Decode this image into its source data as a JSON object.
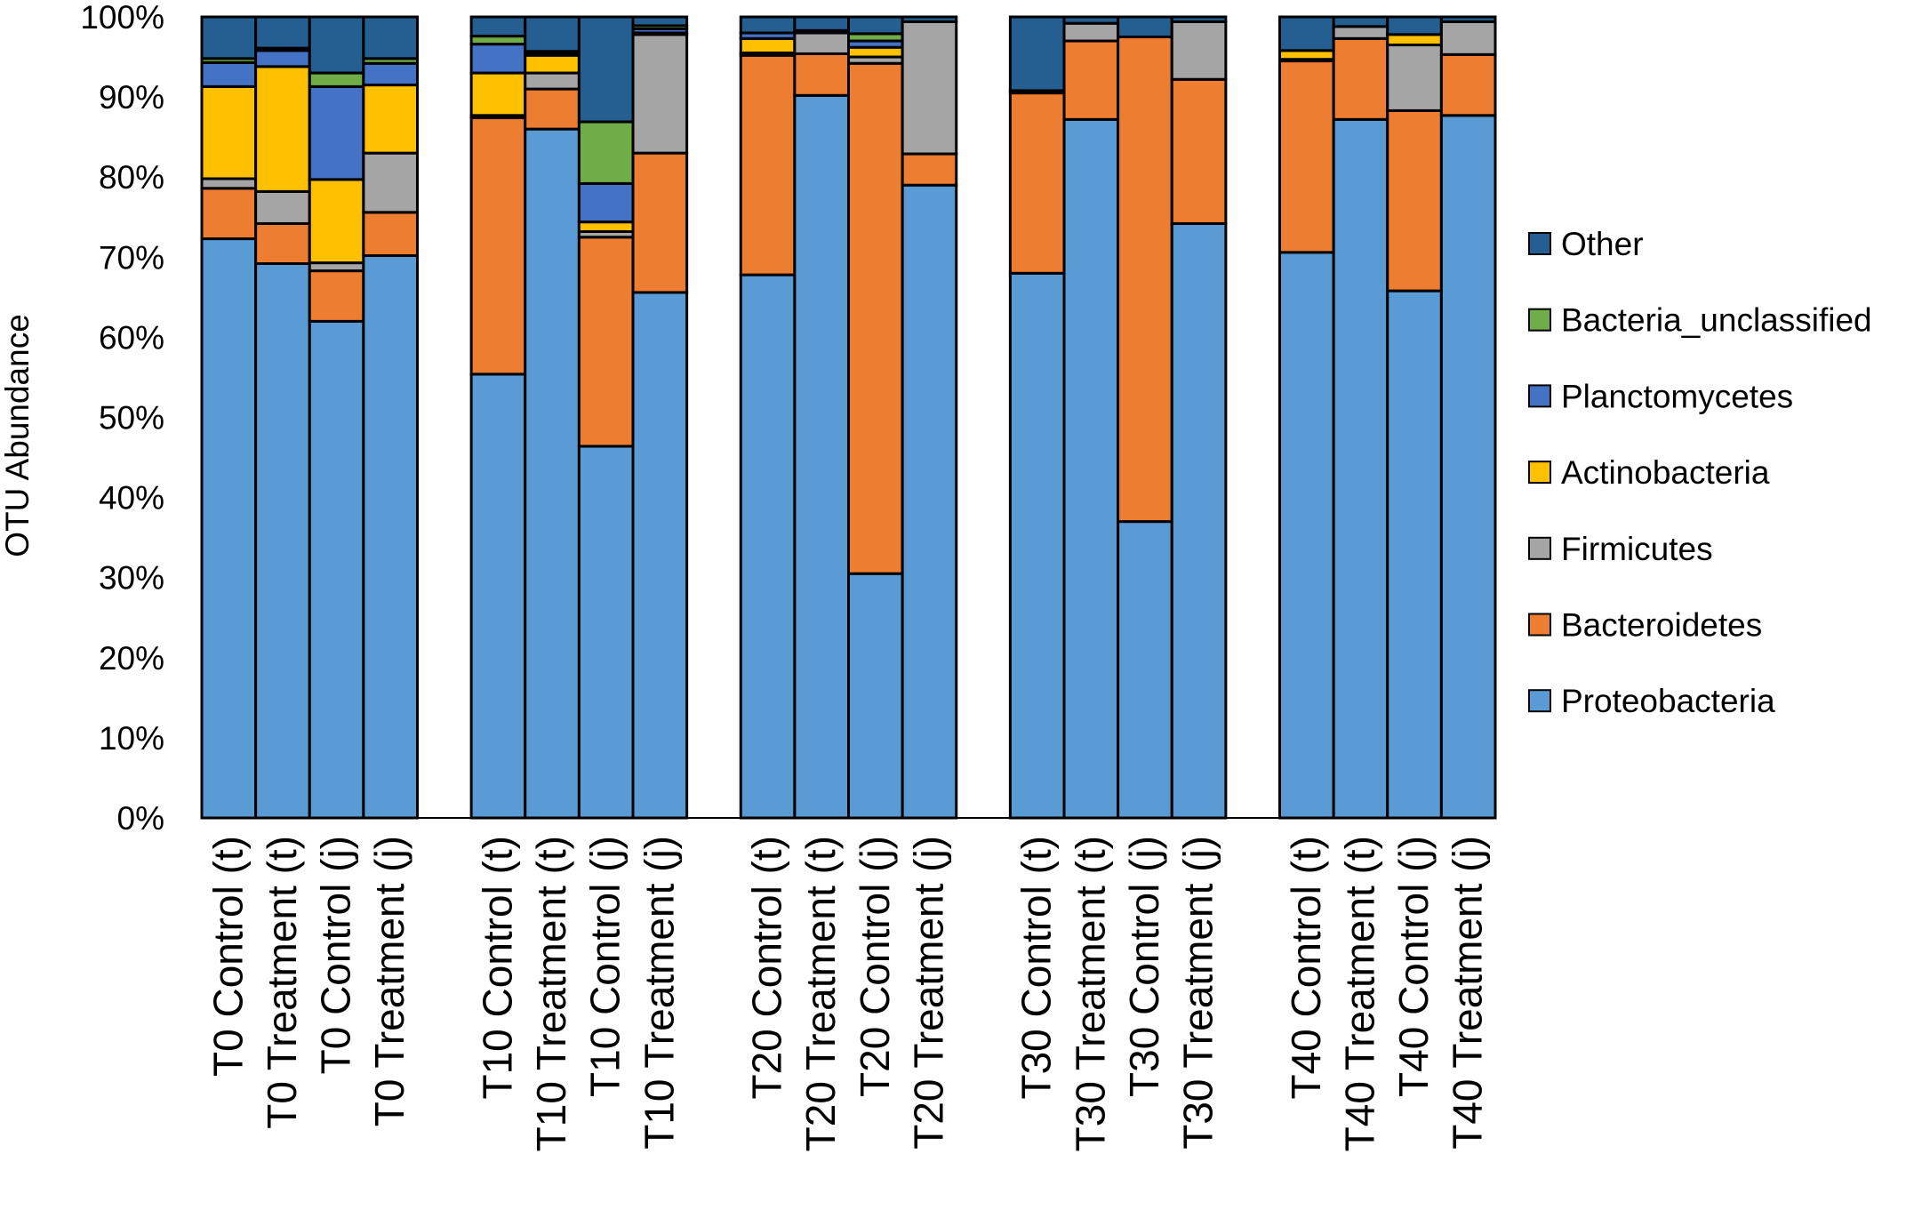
{
  "chart_data": {
    "type": "bar",
    "stacked": true,
    "title": "",
    "xlabel": "",
    "ylabel": "OTU Abundance",
    "ylim": [
      0,
      100
    ],
    "yticks": [
      "0%",
      "10%",
      "20%",
      "30%",
      "40%",
      "50%",
      "60%",
      "70%",
      "80%",
      "90%",
      "100%"
    ],
    "legend_position": "right",
    "groups": [
      [
        "T0 Control (t)",
        "T0 Treatment (t)",
        "T0 Control (j)",
        "T0 Treatment (j)"
      ],
      [
        "T10 Control (t)",
        "T10 Treatment (t)",
        "T10 Control (j)",
        "T10 Treatment (j)"
      ],
      [
        "T20 Control (t)",
        "T20 Treatment (t)",
        "T20 Control (j)",
        "T20 Treatment (j)"
      ],
      [
        "T30 Control (t)",
        "T30 Treatment (t)",
        "T30 Control (j)",
        "T30 Treatment (j)"
      ],
      [
        "T40 Control (t)",
        "T40 Treatment (t)",
        "T40 Control (j)",
        "T40 Treatment (j)"
      ]
    ],
    "series": [
      {
        "name": "Proteobacteria",
        "color": "#5B9BD5",
        "values": [
          72.3,
          69.2,
          62.0,
          70.2,
          55.4,
          86.0,
          46.4,
          65.6,
          67.8,
          90.2,
          30.5,
          79.0,
          68.0,
          87.2,
          37.0,
          74.2,
          70.6,
          87.2,
          65.8,
          87.7
        ]
      },
      {
        "name": "Bacteroidetes",
        "color": "#ED7D31",
        "values": [
          6.3,
          5.0,
          6.3,
          5.4,
          32.0,
          5.0,
          26.1,
          17.4,
          27.4,
          5.2,
          63.7,
          3.9,
          22.5,
          9.8,
          60.5,
          18.0,
          23.9,
          10.1,
          22.5,
          7.6
        ]
      },
      {
        "name": "Firmicutes",
        "color": "#A5A5A5",
        "values": [
          1.2,
          4.0,
          1.0,
          7.4,
          0.3,
          2.0,
          0.7,
          14.8,
          0.3,
          2.6,
          0.8,
          16.5,
          0.0,
          2.2,
          0.0,
          7.2,
          0.2,
          1.5,
          8.2,
          4.1
        ]
      },
      {
        "name": "Actinobacteria",
        "color": "#FFC000",
        "values": [
          11.5,
          15.6,
          10.4,
          8.5,
          5.3,
          2.2,
          1.2,
          0.2,
          1.8,
          0.3,
          1.2,
          0.0,
          0.3,
          0.0,
          0.0,
          0.0,
          1.1,
          0.0,
          1.3,
          0.0
        ]
      },
      {
        "name": "Planctomycetes",
        "color": "#4472C4",
        "values": [
          3.0,
          2.0,
          11.6,
          2.7,
          3.6,
          0.3,
          4.8,
          0.5,
          0.7,
          0.0,
          0.8,
          0.0,
          0.0,
          0.0,
          0.0,
          0.0,
          0.0,
          0.0,
          0.0,
          0.0
        ]
      },
      {
        "name": "Bacteria_unclassified",
        "color": "#70AD47",
        "values": [
          0.5,
          0.3,
          1.7,
          0.6,
          1.0,
          0.2,
          7.7,
          0.4,
          0.0,
          0.0,
          0.9,
          0.0,
          0.0,
          0.0,
          0.0,
          0.0,
          0.0,
          0.0,
          0.0,
          0.0
        ]
      },
      {
        "name": "Other",
        "color": "#255E91",
        "values": [
          5.2,
          3.9,
          7.0,
          5.2,
          2.4,
          4.3,
          13.1,
          1.1,
          2.0,
          1.7,
          2.1,
          0.6,
          9.2,
          0.8,
          2.5,
          0.6,
          4.2,
          1.2,
          2.2,
          0.6
        ]
      }
    ]
  }
}
